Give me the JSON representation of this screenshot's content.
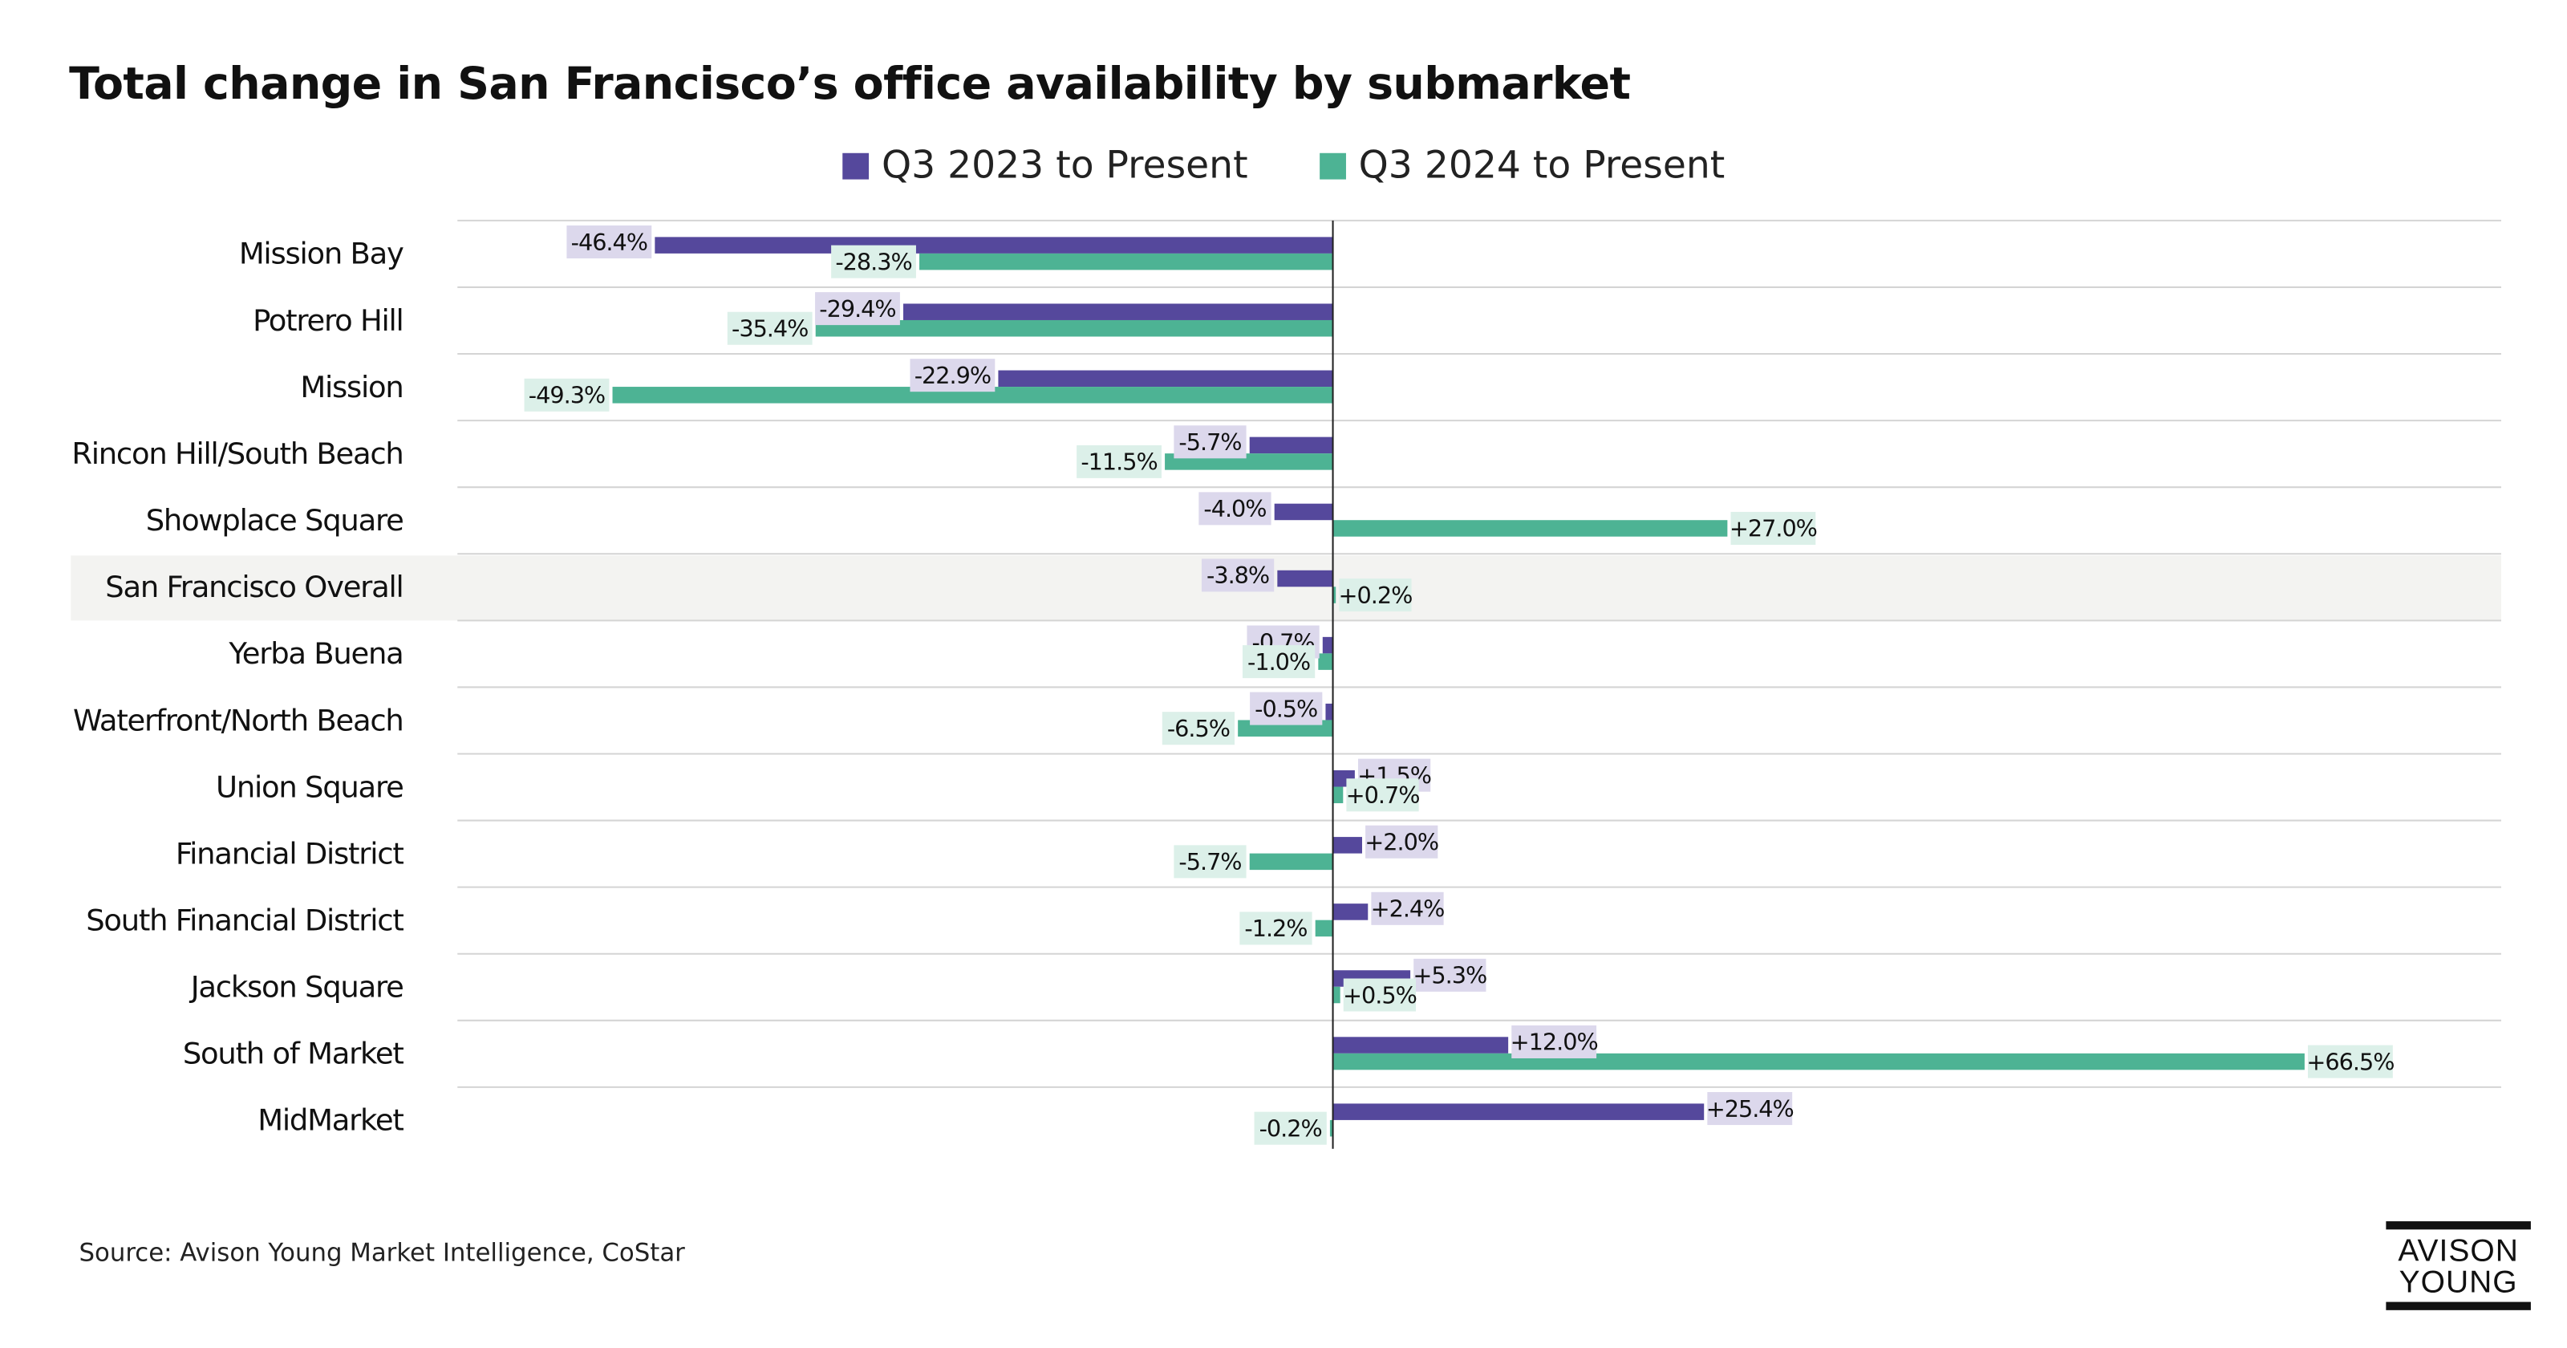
{
  "title": "Total change in San Francisco’s office availability by submarket",
  "source": "Source: Avison Young Market Intelligence, CoStar",
  "logo": {
    "line1": "AVISON",
    "line2": "YOUNG"
  },
  "colors": {
    "series1": "#55489c",
    "series2": "#4db394",
    "label1_bg": "#dcd8ec",
    "label2_bg": "#dcf0e9",
    "highlight_bg": "#f3f3f1"
  },
  "chart_data": {
    "type": "bar",
    "orientation": "horizontal",
    "title": "Total change in San Francisco’s office availability by submarket",
    "legend_position": "top",
    "grid": true,
    "highlighted_category": "San Francisco Overall",
    "categories": [
      "Mission Bay",
      "Potrero Hill",
      "Mission",
      "Rincon Hill/South Beach",
      "Showplace Square",
      "San Francisco Overall",
      "Yerba Buena",
      "Waterfront/North Beach",
      "Union Square",
      "Financial District",
      "South Financial District",
      "Jackson Square",
      "South of Market",
      "MidMarket"
    ],
    "series": [
      {
        "name": "Q3 2023 to Present",
        "values": [
          -46.4,
          -29.4,
          -22.9,
          -5.7,
          -4.0,
          -3.8,
          -0.7,
          -0.5,
          1.5,
          2.0,
          2.4,
          5.3,
          12.0,
          25.4
        ],
        "labels": [
          "-46.4%",
          "-29.4%",
          "-22.9%",
          "-5.7%",
          "-4.0%",
          "-3.8%",
          "-0.7%",
          "-0.5%",
          "+1.5%",
          "+2.0%",
          "+2.4%",
          "+5.3%",
          "+12.0%",
          "+25.4%"
        ]
      },
      {
        "name": "Q3 2024 to Present",
        "values": [
          -28.3,
          -35.4,
          -49.3,
          -11.5,
          27.0,
          0.2,
          -1.0,
          -6.5,
          0.7,
          -5.7,
          -1.2,
          0.5,
          66.5,
          -0.2
        ],
        "labels": [
          "-28.3%",
          "-35.4%",
          "-49.3%",
          "-11.5%",
          "+27.0%",
          "+0.2%",
          "-1.0%",
          "-6.5%",
          "+0.7%",
          "-5.7%",
          "-1.2%",
          "+0.5%",
          "+66.5%",
          "-0.2%"
        ]
      }
    ],
    "xlim": [
      -60,
      80
    ]
  }
}
